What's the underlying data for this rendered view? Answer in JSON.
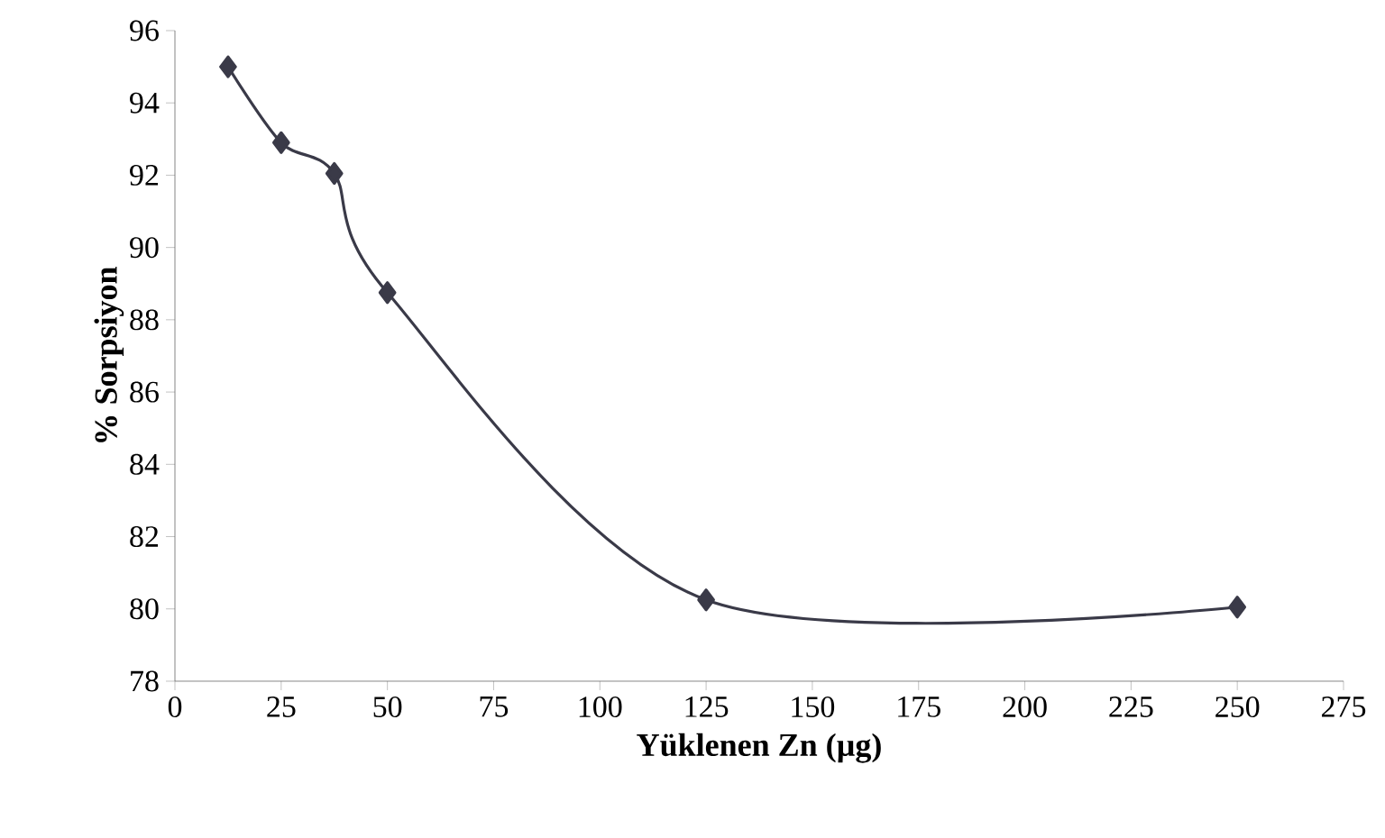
{
  "chart_data": {
    "type": "line",
    "xlabel": "Yüklenen Zn (µg)",
    "ylabel": "% Sorpsiyon",
    "x": [
      12.5,
      25,
      37.5,
      50,
      125,
      250
    ],
    "series": [
      {
        "color": "#3a3a48",
        "values": [
          95.0,
          92.9,
          92.05,
          88.75,
          80.25,
          80.05
        ]
      }
    ],
    "xlim": [
      0,
      275
    ],
    "xticks": [
      0,
      25,
      50,
      75,
      100,
      125,
      150,
      175,
      200,
      225,
      250,
      275
    ],
    "ylim": [
      78,
      96
    ],
    "yticks": [
      78,
      80,
      82,
      84,
      86,
      88,
      90,
      92,
      94,
      96
    ],
    "marker": "diamond",
    "line_style": "solid"
  }
}
